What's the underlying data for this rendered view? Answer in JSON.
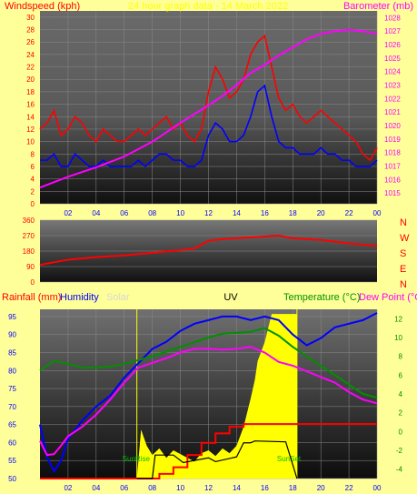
{
  "title": "24 hour graph data - 14 March 2022",
  "chart_data": [
    {
      "type": "line",
      "name": "wind-barometer",
      "left_axis_label": "Windspeed (kph)",
      "right_axis_label": "Barometer (mb)",
      "x_ticks": [
        "02",
        "04",
        "06",
        "08",
        "10",
        "12",
        "14",
        "16",
        "18",
        "20",
        "22",
        "00"
      ],
      "ylim_left": [
        0,
        31
      ],
      "yticks_left": [
        0,
        2,
        4,
        6,
        8,
        10,
        12,
        14,
        16,
        18,
        20,
        22,
        24,
        26,
        28,
        30
      ],
      "ylim_right": [
        1014.2,
        1028.5
      ],
      "yticks_right": [
        1015,
        1016,
        1017,
        1018,
        1019,
        1020,
        1021,
        1022,
        1023,
        1024,
        1025,
        1026,
        1027,
        1028
      ],
      "series": [
        {
          "key": "gust",
          "color": "#ff0000",
          "axis": "left",
          "x": [
            0,
            0.5,
            1,
            1.5,
            2,
            2.5,
            3,
            3.5,
            4,
            4.5,
            5,
            5.5,
            6,
            6.5,
            7,
            7.5,
            8,
            8.5,
            9,
            9.5,
            10,
            10.5,
            11,
            11.5,
            12,
            12.5,
            13,
            13.5,
            14,
            14.5,
            15,
            15.5,
            16,
            16.5,
            17,
            17.5,
            18,
            18.5,
            19,
            19.5,
            20,
            20.5,
            21,
            21.5,
            22,
            22.5,
            23,
            23.5,
            24
          ],
          "y": [
            12,
            13,
            15,
            11,
            12,
            14,
            13,
            11,
            10,
            12,
            11,
            10,
            10,
            11,
            12,
            11,
            12,
            13,
            14,
            12,
            13,
            11,
            10,
            12,
            18,
            22,
            20,
            17,
            18,
            20,
            24,
            26,
            27,
            22,
            17,
            15,
            16,
            14,
            13,
            14,
            15,
            14,
            13,
            12,
            11,
            10,
            8,
            7,
            9
          ]
        },
        {
          "key": "speed",
          "color": "#0000ff",
          "axis": "left",
          "x": [
            0,
            0.5,
            1,
            1.5,
            2,
            2.5,
            3,
            3.5,
            4,
            4.5,
            5,
            5.5,
            6,
            6.5,
            7,
            7.5,
            8,
            8.5,
            9,
            9.5,
            10,
            10.5,
            11,
            11.5,
            12,
            12.5,
            13,
            13.5,
            14,
            14.5,
            15,
            15.5,
            16,
            16.5,
            17,
            17.5,
            18,
            18.5,
            19,
            19.5,
            20,
            20.5,
            21,
            21.5,
            22,
            22.5,
            23,
            23.5,
            24
          ],
          "y": [
            7,
            7,
            8,
            6,
            6,
            8,
            7,
            6,
            6,
            7,
            6,
            6,
            6,
            6,
            7,
            6,
            7,
            8,
            8,
            7,
            7,
            6,
            6,
            7,
            11,
            13,
            12,
            10,
            10,
            11,
            14,
            18,
            19,
            14,
            10,
            9,
            9,
            8,
            8,
            8,
            9,
            8,
            8,
            7,
            7,
            6,
            6,
            6,
            7
          ]
        },
        {
          "key": "barometer",
          "color": "#ff00ff",
          "axis": "right",
          "x": [
            0,
            2,
            4,
            6,
            8,
            10,
            12,
            13,
            14,
            15,
            16,
            17,
            18,
            19,
            20,
            21,
            22,
            23,
            24
          ],
          "y": [
            1015.4,
            1016.2,
            1016.9,
            1017.7,
            1018.8,
            1020.2,
            1021.5,
            1022.2,
            1023.0,
            1023.9,
            1024.5,
            1025.2,
            1025.8,
            1026.4,
            1026.8,
            1027.0,
            1027.1,
            1027.0,
            1026.8
          ]
        }
      ]
    },
    {
      "type": "line",
      "name": "wind-direction",
      "ylim": [
        0,
        360
      ],
      "yticks": [
        0,
        90,
        180,
        270,
        360
      ],
      "compass_labels": [
        "N",
        "W",
        "S",
        "E",
        "N"
      ],
      "series": [
        {
          "key": "direction",
          "color": "#ff0000",
          "x": [
            0,
            2,
            4,
            6,
            8,
            10,
            11,
            12,
            13,
            14,
            16,
            17,
            18,
            20,
            22,
            24
          ],
          "y": [
            100,
            130,
            145,
            155,
            170,
            185,
            195,
            240,
            250,
            255,
            265,
            270,
            255,
            245,
            225,
            210
          ]
        }
      ]
    },
    {
      "type": "line",
      "name": "temp-humidity-rain",
      "left_labels": [
        "Rainfall (mm)",
        "Humidity",
        "Solar"
      ],
      "center_label": "UV",
      "right_labels": [
        "Temperature (°C)",
        "Dew Point (°C)"
      ],
      "x_ticks": [
        "02",
        "04",
        "06",
        "08",
        "10",
        "12",
        "14",
        "16",
        "18",
        "20",
        "22",
        "00"
      ],
      "ylim_left": [
        50,
        97
      ],
      "yticks_left": [
        50,
        55,
        60,
        65,
        70,
        75,
        80,
        85,
        90,
        95
      ],
      "ylim_right": [
        -5,
        13
      ],
      "yticks_right": [
        -4,
        -2,
        0,
        2,
        4,
        6,
        8,
        10,
        12
      ],
      "sunrise_hour": 6.9,
      "sunset_hour": 18.3,
      "sunrise_label": "SunRise",
      "sunset_label": "SunSet",
      "series": [
        {
          "key": "humidity",
          "color": "#0000ff",
          "axis": "left",
          "x": [
            0,
            0.5,
            1,
            1.5,
            2,
            3,
            4,
            5,
            6,
            7,
            8,
            9,
            10,
            11,
            12,
            13,
            14,
            15,
            16,
            17,
            18,
            19,
            20,
            21,
            22,
            23,
            24
          ],
          "y": [
            65,
            56,
            52,
            55,
            61,
            66,
            70,
            73,
            78,
            82,
            86,
            88,
            91,
            93,
            94,
            95,
            95,
            94,
            95,
            94,
            90,
            87,
            89,
            92,
            93,
            94,
            96
          ]
        },
        {
          "key": "temperature",
          "color": "#009000",
          "axis": "right",
          "x": [
            0,
            1,
            2,
            3,
            4,
            5,
            6,
            7,
            8,
            9,
            10,
            11,
            12,
            13,
            14,
            15,
            16,
            17,
            18,
            19,
            20,
            21,
            22,
            23,
            24
          ],
          "y": [
            6.5,
            7.5,
            7.2,
            6.8,
            6.8,
            6.9,
            7.2,
            7.6,
            8.0,
            8.5,
            9.0,
            9.5,
            10.0,
            10.4,
            10.5,
            10.6,
            11.0,
            10.2,
            9.0,
            8.0,
            7.0,
            6.0,
            5.0,
            4.0,
            3.6
          ]
        },
        {
          "key": "dewpoint",
          "color": "#ff00ff",
          "axis": "right",
          "x": [
            0,
            0.5,
            1,
            1.5,
            2,
            3,
            4,
            5,
            6,
            7,
            8,
            9,
            10,
            11,
            12,
            13,
            14,
            15,
            16,
            17,
            18,
            19,
            20,
            21,
            22,
            23,
            24
          ],
          "y": [
            -1,
            -2.5,
            -2.4,
            -1.5,
            -0.5,
            0.5,
            1.8,
            3.4,
            5.2,
            6.8,
            7.3,
            7.8,
            8.4,
            8.8,
            8.8,
            8.7,
            8.8,
            9.0,
            8.4,
            7.4,
            7.0,
            6.4,
            5.8,
            5.2,
            4.2,
            3.4,
            3.0
          ]
        },
        {
          "key": "rainfall",
          "color": "#ff0000",
          "axis": "right",
          "x": [
            0,
            8,
            8.5,
            9,
            9.5,
            10,
            10.5,
            11,
            11.5,
            12,
            12.5,
            13,
            13.5,
            14,
            14.5,
            24
          ],
          "y": [
            -5,
            -5,
            -4.5,
            -4.5,
            -3.8,
            -3.8,
            -2.5,
            -2.5,
            -1.2,
            -1.2,
            -0.2,
            -0.2,
            0.5,
            0.5,
            0.8,
            0.8
          ]
        },
        {
          "key": "uv",
          "color": "#000000",
          "axis": "right",
          "x": [
            6.9,
            8,
            8.2,
            9.5,
            10.2,
            12,
            12.5,
            14,
            14.5,
            15,
            15.3,
            17.5,
            18.3
          ],
          "y": [
            -5,
            -5,
            -2.5,
            -2.5,
            -3.3,
            -2.8,
            -3.2,
            -2.7,
            -1.2,
            -1.2,
            -1.0,
            -1.1,
            -5
          ]
        },
        {
          "key": "solar",
          "color": "#ffff00",
          "axis": "right",
          "x": [
            6.9,
            7.2,
            7.6,
            8,
            8.5,
            9,
            9.5,
            10,
            10.5,
            11,
            11.5,
            12,
            12.5,
            13,
            13.5,
            14,
            14.5,
            15,
            15.3,
            15.5,
            16,
            16.5,
            17,
            17.5,
            18,
            18.3
          ],
          "y": [
            -5,
            0.2,
            -1.5,
            -2.5,
            -1.8,
            -2.8,
            -2.0,
            -2.4,
            -2.8,
            -3.2,
            -2.3,
            -2.0,
            -2.6,
            -1.8,
            -2.3,
            -1.5,
            0.5,
            3.5,
            5.5,
            7.5,
            9.5,
            12.5,
            12.5,
            12.5,
            12.5,
            12.5
          ]
        }
      ]
    }
  ]
}
